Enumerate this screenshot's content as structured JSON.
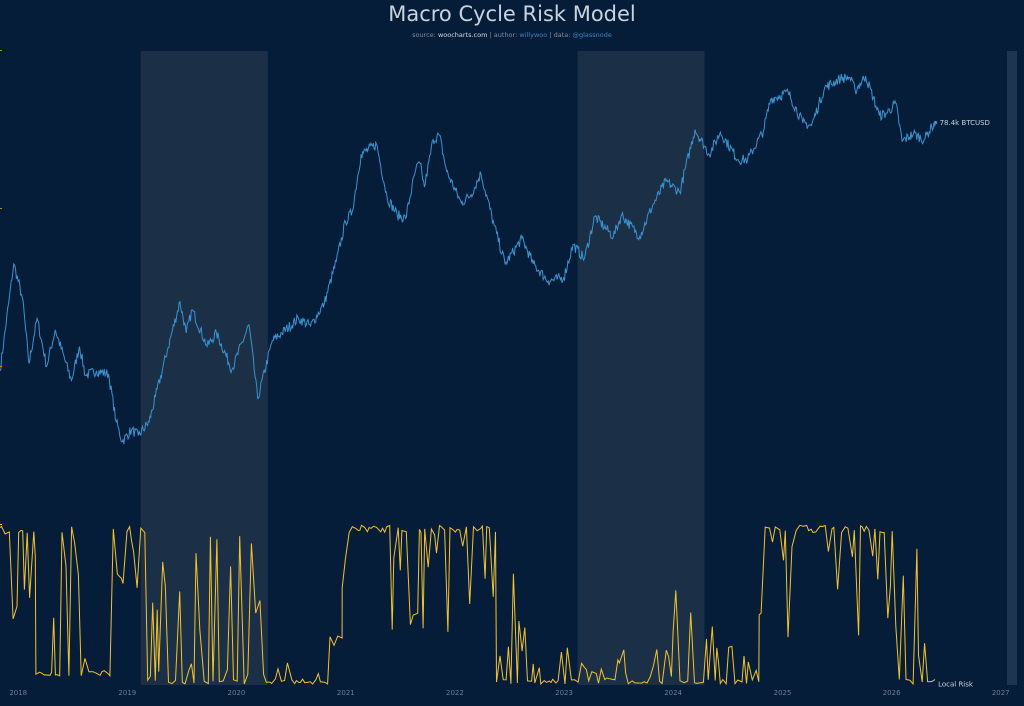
{
  "title": "Macro Cycle Risk Model",
  "subtitle": {
    "source_prefix": "source:",
    "source": "woocharts.com",
    "author_prefix": "| author:",
    "author": "willywoo",
    "data_prefix": "| data:",
    "data": "@glassnode"
  },
  "colors": {
    "background": "#061d3a",
    "band": "#1b2f47",
    "price": "#3a93cf",
    "risk": "#f2c230",
    "tick": "#6c7d92"
  },
  "chart_data": {
    "type": "line",
    "x_axis": {
      "range": [
        "2017-11-01",
        "2027-02-01"
      ],
      "tick_labels": [
        "2018",
        "2019",
        "2020",
        "2021",
        "2022",
        "2023",
        "2024",
        "2025",
        "2026",
        "2027"
      ]
    },
    "shaded_periods": [
      {
        "start": "2019-02-15",
        "end": "2020-04-15"
      },
      {
        "start": "2023-02-15",
        "end": "2024-04-15"
      }
    ],
    "series": [
      {
        "name": "BTCUSD",
        "end_label": "78.4k BTCUSD",
        "scale": "log",
        "points": [
          [
            "2017-11-01",
            6500
          ],
          [
            "2017-12-17",
            19000
          ],
          [
            "2018-01-15",
            13500
          ],
          [
            "2018-02-06",
            7000
          ],
          [
            "2018-03-05",
            11000
          ],
          [
            "2018-04-06",
            6800
          ],
          [
            "2018-05-05",
            9800
          ],
          [
            "2018-06-28",
            5900
          ],
          [
            "2018-07-25",
            8300
          ],
          [
            "2018-08-14",
            6200
          ],
          [
            "2018-09-20",
            6500
          ],
          [
            "2018-10-30",
            6300
          ],
          [
            "2018-11-25",
            3900
          ],
          [
            "2018-12-15",
            3200
          ],
          [
            "2019-01-15",
            3600
          ],
          [
            "2019-02-07",
            3400
          ],
          [
            "2019-03-15",
            3900
          ],
          [
            "2019-04-05",
            5000
          ],
          [
            "2019-05-15",
            8000
          ],
          [
            "2019-06-26",
            13000
          ],
          [
            "2019-07-17",
            9500
          ],
          [
            "2019-08-06",
            12000
          ],
          [
            "2019-09-25",
            8300
          ],
          [
            "2019-10-26",
            9500
          ],
          [
            "2019-12-17",
            6600
          ],
          [
            "2020-02-12",
            10300
          ],
          [
            "2020-03-12",
            4900
          ],
          [
            "2020-04-30",
            8800
          ],
          [
            "2020-06-01",
            9500
          ],
          [
            "2020-07-27",
            11000
          ],
          [
            "2020-09-05",
            10200
          ],
          [
            "2020-10-21",
            12800
          ],
          [
            "2020-11-30",
            19500
          ],
          [
            "2020-12-31",
            29000
          ],
          [
            "2021-01-22",
            32000
          ],
          [
            "2021-02-21",
            57000
          ],
          [
            "2021-04-14",
            63000
          ],
          [
            "2021-05-19",
            37000
          ],
          [
            "2021-06-22",
            31000
          ],
          [
            "2021-07-20",
            30000
          ],
          [
            "2021-08-23",
            49000
          ],
          [
            "2021-09-06",
            52000
          ],
          [
            "2021-09-21",
            41000
          ],
          [
            "2021-10-20",
            66000
          ],
          [
            "2021-11-10",
            69000
          ],
          [
            "2021-12-04",
            48000
          ],
          [
            "2022-01-22",
            35000
          ],
          [
            "2022-02-24",
            38000
          ],
          [
            "2022-03-29",
            47000
          ],
          [
            "2022-05-12",
            28000
          ],
          [
            "2022-06-18",
            19000
          ],
          [
            "2022-08-13",
            24500
          ],
          [
            "2022-09-20",
            19000
          ],
          [
            "2022-11-09",
            16000
          ],
          [
            "2022-12-31",
            16500
          ],
          [
            "2023-01-31",
            23000
          ],
          [
            "2023-03-10",
            20000
          ],
          [
            "2023-04-14",
            30500
          ],
          [
            "2023-06-15",
            25000
          ],
          [
            "2023-07-13",
            31000
          ],
          [
            "2023-09-11",
            25000
          ],
          [
            "2023-10-24",
            34000
          ],
          [
            "2023-12-08",
            43500
          ],
          [
            "2024-01-23",
            39000
          ],
          [
            "2024-03-14",
            73000
          ],
          [
            "2024-05-01",
            57000
          ],
          [
            "2024-06-07",
            71000
          ],
          [
            "2024-08-05",
            54000
          ],
          [
            "2024-09-06",
            54000
          ],
          [
            "2024-10-29",
            72000
          ],
          [
            "2024-11-22",
            99000
          ],
          [
            "2025-01-20",
            106000
          ],
          [
            "2025-03-10",
            78000
          ],
          [
            "2025-04-08",
            76000
          ],
          [
            "2025-05-22",
            111000
          ],
          [
            "2025-07-14",
            122000
          ],
          [
            "2025-08-14",
            123000
          ],
          [
            "2025-09-01",
            108000
          ],
          [
            "2025-10-06",
            125000
          ],
          [
            "2025-11-21",
            84000
          ],
          [
            "2025-12-15",
            86000
          ],
          [
            "2026-01-15",
            95000
          ],
          [
            "2026-02-05",
            65000
          ],
          [
            "2026-03-15",
            70000
          ],
          [
            "2026-04-20",
            66000
          ],
          [
            "2026-05-15",
            75000
          ],
          [
            "2026-05-28",
            78400
          ]
        ]
      },
      {
        "name": "Local Risk",
        "end_label": "Local Risk",
        "range": [
          0,
          1
        ],
        "segments": [
          [
            "2017-11-01",
            "2018-03-01",
            0.4,
            1.0
          ],
          [
            "2018-03-01",
            "2018-11-15",
            0.05,
            1.0
          ],
          [
            "2018-11-15",
            "2019-03-10",
            0.45,
            1.0
          ],
          [
            "2019-03-10",
            "2020-04-10",
            0.0,
            0.95
          ],
          [
            "2020-04-10",
            "2020-10-01",
            0.0,
            0.15
          ],
          [
            "2020-10-01",
            "2020-12-20",
            0.0,
            0.35
          ],
          [
            "2020-12-20",
            "2022-05-20",
            0.2,
            1.0
          ],
          [
            "2022-05-20",
            "2022-09-20",
            0.0,
            0.7
          ],
          [
            "2022-09-20",
            "2024-01-01",
            0.0,
            0.25
          ],
          [
            "2024-01-01",
            "2024-10-15",
            0.0,
            0.6
          ],
          [
            "2024-10-15",
            "2026-01-15",
            0.25,
            1.0
          ],
          [
            "2026-01-15",
            "2026-04-01",
            0.0,
            0.9
          ],
          [
            "2026-04-01",
            "2026-05-28",
            0.0,
            0.4
          ]
        ]
      }
    ]
  }
}
